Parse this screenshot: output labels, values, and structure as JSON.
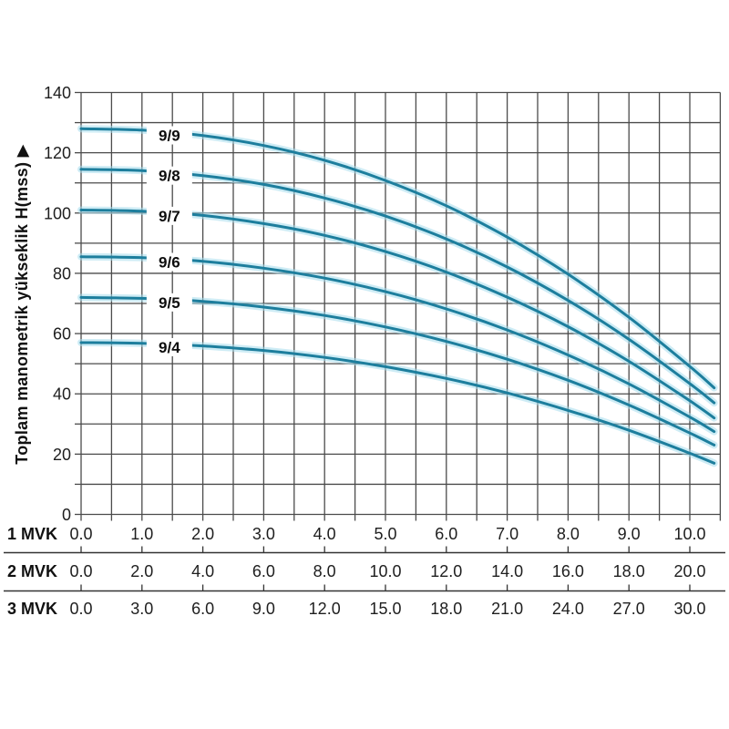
{
  "chart_data": {
    "type": "line",
    "title": "",
    "ylabel": "Toplam manometrik yükseklik H(mss)",
    "ylabel_display": "Toplam manometrik yükseklik H(mss) ▶",
    "ylim": [
      0,
      140
    ],
    "xlim": [
      0,
      10.5
    ],
    "y_ticks": [
      0,
      20,
      40,
      60,
      80,
      100,
      120,
      140
    ],
    "y_grid_step": 10,
    "x_grid_step": 0.5,
    "grid": true,
    "legend_position": "labels-on-curves",
    "colors": {
      "curve": "#1d7e9d",
      "curve_halo": "#a5dcec",
      "grid": "#4b4b4b",
      "axis_line": "#333333",
      "text": "#1e1e1e",
      "background": "#ffffff"
    },
    "x_samples": [
      0,
      1,
      2,
      3,
      4,
      5,
      6,
      7,
      8,
      9,
      10,
      10.4
    ],
    "series": [
      {
        "name": "9/9",
        "h": [
          128.0,
          127.5,
          125.7,
          122.4,
          117.5,
          110.8,
          102.4,
          92.0,
          79.7,
          65.4,
          49.1,
          42.0
        ]
      },
      {
        "name": "9/8",
        "h": [
          114.5,
          114.1,
          112.4,
          109.5,
          105.0,
          99.0,
          91.4,
          82.1,
          71.0,
          58.1,
          43.4,
          37.0
        ]
      },
      {
        "name": "9/7",
        "h": [
          101.0,
          100.6,
          99.2,
          96.5,
          92.6,
          87.2,
          80.4,
          72.1,
          62.3,
          50.8,
          37.7,
          32.0
        ]
      },
      {
        "name": "9/6",
        "h": [
          85.5,
          85.2,
          84.0,
          81.7,
          78.4,
          73.9,
          68.2,
          61.2,
          52.9,
          43.3,
          32.3,
          27.5
        ]
      },
      {
        "name": "9/5",
        "h": [
          72.0,
          71.7,
          70.7,
          68.8,
          66.0,
          62.2,
          57.4,
          51.5,
          44.5,
          36.3,
          27.0,
          23.0
        ]
      },
      {
        "name": "9/4",
        "h": [
          57.0,
          56.8,
          55.9,
          54.4,
          52.1,
          49.0,
          45.1,
          40.3,
          34.5,
          27.9,
          20.3,
          17.0
        ]
      }
    ],
    "curve_label_x": 1.45,
    "x_axes": [
      {
        "label": "1 MVK",
        "tick_labels": [
          "0.0",
          "1.0",
          "2.0",
          "3.0",
          "4.0",
          "5.0",
          "6.0",
          "7.0",
          "8.0",
          "9.0",
          "10.0"
        ]
      },
      {
        "label": "2 MVK",
        "tick_labels": [
          "0.0",
          "2.0",
          "4.0",
          "6.0",
          "8.0",
          "10.0",
          "12.0",
          "14.0",
          "16.0",
          "18.0",
          "20.0"
        ]
      },
      {
        "label": "3 MVK",
        "tick_labels": [
          "0.0",
          "3.0",
          "6.0",
          "9.0",
          "12.0",
          "15.0",
          "18.0",
          "21.0",
          "24.0",
          "27.0",
          "30.0"
        ]
      }
    ]
  }
}
